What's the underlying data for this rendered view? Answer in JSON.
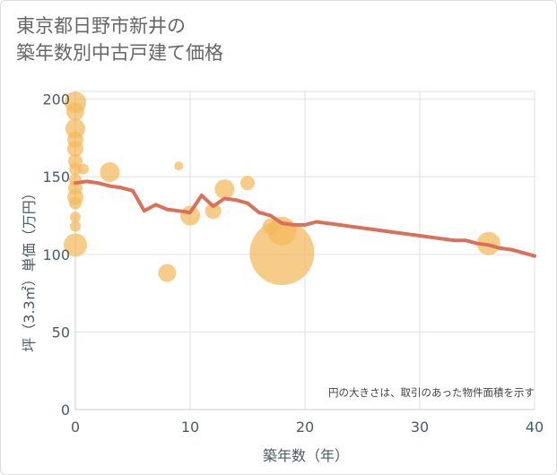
{
  "title": {
    "line1": "東京都日野市新井の",
    "line2": "築年数別中古戸建て価格"
  },
  "chart_data": {
    "type": "scatter+line",
    "xlabel": "築年数（年）",
    "ylabel": "坪（3.3㎡）単価（万円）",
    "xlim": [
      0,
      40
    ],
    "ylim": [
      0,
      205
    ],
    "x_ticks": [
      "0",
      "10",
      "20",
      "30",
      "40"
    ],
    "y_ticks": [
      "0",
      "50",
      "100",
      "150",
      "200"
    ],
    "grid": true,
    "annotation": "円の大きさは、取引のあった物件面積を示す",
    "colors": {
      "bubble": "#f4b95a",
      "line": "#d9705a",
      "grid": "#dde3ea"
    },
    "scatter": [
      {
        "x": 0,
        "y": 198,
        "size": 12
      },
      {
        "x": 0,
        "y": 192,
        "size": 10
      },
      {
        "x": 0,
        "y": 181,
        "size": 11
      },
      {
        "x": 0,
        "y": 174,
        "size": 9
      },
      {
        "x": 0,
        "y": 168,
        "size": 9
      },
      {
        "x": 0,
        "y": 160,
        "size": 8
      },
      {
        "x": 0,
        "y": 155,
        "size": 7
      },
      {
        "x": 0,
        "y": 148,
        "size": 7
      },
      {
        "x": 0,
        "y": 143,
        "size": 8
      },
      {
        "x": 0,
        "y": 137,
        "size": 9
      },
      {
        "x": 0,
        "y": 133,
        "size": 7
      },
      {
        "x": 0,
        "y": 124,
        "size": 6
      },
      {
        "x": 0,
        "y": 118,
        "size": 6
      },
      {
        "x": 0,
        "y": 106,
        "size": 13
      },
      {
        "x": 0.7,
        "y": 155,
        "size": 6
      },
      {
        "x": 3,
        "y": 153,
        "size": 11
      },
      {
        "x": 8,
        "y": 88,
        "size": 10
      },
      {
        "x": 9,
        "y": 157,
        "size": 5
      },
      {
        "x": 10,
        "y": 125,
        "size": 11
      },
      {
        "x": 12,
        "y": 128,
        "size": 9
      },
      {
        "x": 13,
        "y": 142,
        "size": 11
      },
      {
        "x": 15,
        "y": 146,
        "size": 8
      },
      {
        "x": 17,
        "y": 118,
        "size": 9
      },
      {
        "x": 18,
        "y": 115,
        "size": 16
      },
      {
        "x": 18,
        "y": 101,
        "size": 36
      },
      {
        "x": 36,
        "y": 107,
        "size": 13
      }
    ],
    "line": {
      "x": [
        0,
        1,
        2,
        3,
        4,
        5,
        6,
        7,
        8,
        9,
        10,
        11,
        12,
        13,
        14,
        15,
        16,
        17,
        18,
        19,
        20,
        21,
        22,
        23,
        24,
        25,
        26,
        27,
        28,
        29,
        30,
        31,
        32,
        33,
        34,
        35,
        36,
        37,
        38,
        39,
        40
      ],
      "y": [
        146,
        147,
        146,
        144,
        143,
        141,
        128,
        132,
        129,
        128,
        127,
        138,
        131,
        136,
        135,
        133,
        127,
        125,
        120,
        119,
        119,
        121,
        120,
        119,
        118,
        117,
        116,
        115,
        114,
        113,
        112,
        111,
        110,
        109,
        109,
        107,
        106,
        104,
        103,
        101,
        99
      ]
    }
  }
}
